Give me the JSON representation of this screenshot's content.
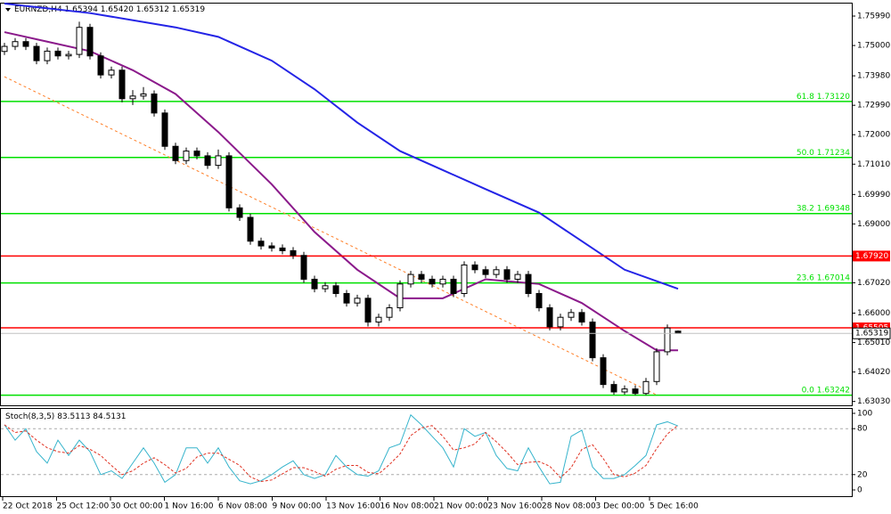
{
  "chart_data": {
    "type": "candlestick",
    "title": "EURNZD,H4",
    "last_labels": [
      "1.65394",
      "1.65420",
      "1.65312",
      "1.65319"
    ],
    "candles": [
      [
        1.748,
        1.7509,
        1.7468,
        1.7497
      ],
      [
        1.7497,
        1.7525,
        1.7485,
        1.7513
      ],
      [
        1.7513,
        1.7525,
        1.7485,
        1.7497
      ],
      [
        1.7497,
        1.7509,
        1.7437,
        1.7449
      ],
      [
        1.7449,
        1.7493,
        1.7437,
        1.7481
      ],
      [
        1.7481,
        1.7493,
        1.7453,
        1.7465
      ],
      [
        1.7465,
        1.7482,
        1.7453,
        1.747
      ],
      [
        1.747,
        1.758,
        1.7458,
        1.7561
      ],
      [
        1.7561,
        1.7573,
        1.7453,
        1.7465
      ],
      [
        1.7465,
        1.7477,
        1.7389,
        1.7401
      ],
      [
        1.7401,
        1.7429,
        1.7389,
        1.7417
      ],
      [
        1.7417,
        1.7429,
        1.7309,
        1.7321
      ],
      [
        1.7321,
        1.735,
        1.73,
        1.733
      ],
      [
        1.733,
        1.736,
        1.7318,
        1.7337
      ],
      [
        1.7337,
        1.7349,
        1.7261,
        1.7273
      ],
      [
        1.7273,
        1.7285,
        1.7149,
        1.7161
      ],
      [
        1.7161,
        1.7173,
        1.7101,
        1.7113
      ],
      [
        1.7113,
        1.7157,
        1.7101,
        1.7145
      ],
      [
        1.7145,
        1.7157,
        1.7117,
        1.7129
      ],
      [
        1.7129,
        1.7141,
        1.7085,
        1.7097
      ],
      [
        1.7097,
        1.715,
        1.7085,
        1.7129
      ],
      [
        1.7129,
        1.7141,
        1.6942,
        1.6954
      ],
      [
        1.6954,
        1.6966,
        1.691,
        1.6922
      ],
      [
        1.6922,
        1.6934,
        1.683,
        1.6842
      ],
      [
        1.6842,
        1.6854,
        1.6814,
        1.6826
      ],
      [
        1.6826,
        1.6838,
        1.6807,
        1.6819
      ],
      [
        1.6819,
        1.6831,
        1.6798,
        1.681
      ],
      [
        1.681,
        1.6822,
        1.6782,
        1.6794
      ],
      [
        1.6794,
        1.6806,
        1.6702,
        1.6714
      ],
      [
        1.6714,
        1.6726,
        1.667,
        1.6682
      ],
      [
        1.6682,
        1.6704,
        1.667,
        1.6692
      ],
      [
        1.6692,
        1.6704,
        1.6654,
        1.6666
      ],
      [
        1.6666,
        1.6678,
        1.6622,
        1.6634
      ],
      [
        1.6634,
        1.6662,
        1.6622,
        1.665
      ],
      [
        1.665,
        1.6662,
        1.6555,
        1.657
      ],
      [
        1.657,
        1.6598,
        1.6555,
        1.6586
      ],
      [
        1.6586,
        1.663,
        1.6574,
        1.6618
      ],
      [
        1.6618,
        1.671,
        1.6606,
        1.6698
      ],
      [
        1.6698,
        1.6742,
        1.6686,
        1.673
      ],
      [
        1.673,
        1.6742,
        1.6702,
        1.6714
      ],
      [
        1.6714,
        1.6726,
        1.6686,
        1.6698
      ],
      [
        1.6698,
        1.6726,
        1.6686,
        1.6714
      ],
      [
        1.6714,
        1.6726,
        1.6654,
        1.6666
      ],
      [
        1.6666,
        1.6774,
        1.6654,
        1.6762
      ],
      [
        1.6762,
        1.6774,
        1.6734,
        1.6746
      ],
      [
        1.6746,
        1.6758,
        1.6718,
        1.673
      ],
      [
        1.673,
        1.6758,
        1.6718,
        1.6746
      ],
      [
        1.6746,
        1.6758,
        1.6702,
        1.6714
      ],
      [
        1.6714,
        1.6742,
        1.6702,
        1.673
      ],
      [
        1.673,
        1.6742,
        1.6654,
        1.6666
      ],
      [
        1.6666,
        1.6678,
        1.6606,
        1.6618
      ],
      [
        1.6618,
        1.663,
        1.6542,
        1.6554
      ],
      [
        1.6554,
        1.6598,
        1.6542,
        1.6586
      ],
      [
        1.6586,
        1.6614,
        1.6574,
        1.6602
      ],
      [
        1.6602,
        1.6614,
        1.6558,
        1.657
      ],
      [
        1.657,
        1.6582,
        1.6438,
        1.645
      ],
      [
        1.645,
        1.6462,
        1.6348,
        1.636
      ],
      [
        1.636,
        1.6372,
        1.6326,
        1.6335
      ],
      [
        1.6335,
        1.6357,
        1.6326,
        1.6345
      ],
      [
        1.6345,
        1.6357,
        1.6324,
        1.633
      ],
      [
        1.633,
        1.6382,
        1.6324,
        1.637
      ],
      [
        1.637,
        1.6482,
        1.6358,
        1.647
      ],
      [
        1.647,
        1.6562,
        1.6458,
        1.655
      ],
      [
        1.65394,
        1.6542,
        1.65312,
        1.65319
      ]
    ],
    "ylim": [
      1.629,
      1.7641
    ],
    "yticks": [
      {
        "value": 1.7599,
        "label": "1.75990"
      },
      {
        "value": 1.75,
        "label": "1.75000"
      },
      {
        "value": 1.7398,
        "label": "1.73980"
      },
      {
        "value": 1.7299,
        "label": "1.72990"
      },
      {
        "value": 1.72,
        "label": "1.72000"
      },
      {
        "value": 1.7101,
        "label": "1.71010"
      },
      {
        "value": 1.6999,
        "label": "1.69990"
      },
      {
        "value": 1.69,
        "label": "1.69000"
      },
      {
        "value": 1.6702,
        "label": "1.67020"
      },
      {
        "value": 1.66,
        "label": "1.66000"
      },
      {
        "value": 1.6501,
        "label": "1.65010"
      },
      {
        "value": 1.6402,
        "label": "1.64020"
      },
      {
        "value": 1.6303,
        "label": "1.63030"
      }
    ],
    "x_labels": [
      "22 Oct 2018",
      "25 Oct 12:00",
      "30 Oct 00:00",
      "1 Nov 16:00",
      "6 Nov 08:00",
      "9 Nov 00:00",
      "13 Nov 16:00",
      "16 Nov 08:00",
      "21 Nov 00:00",
      "23 Nov 16:00",
      "28 Nov 08:00",
      "3 Dec 00:00",
      "5 Dec 16:00"
    ],
    "moving_averages": [
      {
        "color": "#2424e6",
        "x": [
          0,
          8,
          16,
          20,
          25,
          29,
          33,
          37,
          41,
          45,
          50,
          54,
          58,
          63
        ],
        "values": [
          1.7641,
          1.7609,
          1.7561,
          1.7529,
          1.7449,
          1.7353,
          1.7241,
          1.7145,
          1.7081,
          1.7017,
          1.6938,
          1.6842,
          1.6746,
          1.6682
        ]
      },
      {
        "color": "#8b1a8b",
        "x": [
          0,
          4,
          8,
          12,
          16,
          20,
          25,
          29,
          33,
          37,
          41,
          45,
          50,
          54,
          58,
          61,
          63
        ],
        "values": [
          1.7545,
          1.7513,
          1.7481,
          1.7417,
          1.7337,
          1.7209,
          1.7033,
          1.6873,
          1.6746,
          1.665,
          1.665,
          1.6714,
          1.6698,
          1.6634,
          1.654,
          1.6475,
          1.6475
        ]
      }
    ],
    "trendline": {
      "color": "#ff7f27",
      "x": [
        0,
        61
      ],
      "values": [
        1.7395,
        1.6325
      ]
    },
    "fib_color": "#00e000",
    "fib_levels": [
      {
        "level": "61.8",
        "value": 1.7312,
        "label": "1.73120"
      },
      {
        "level": "50.0",
        "value": 1.71234,
        "label": "1.71234"
      },
      {
        "level": "38.2",
        "value": 1.69348,
        "label": "1.69348"
      },
      {
        "level": "23.6",
        "value": 1.67014,
        "label": "1.67014"
      },
      {
        "level": "0.0",
        "value": 1.63242,
        "label": "1.63242"
      }
    ],
    "line_color": "#ff0000",
    "price_lines": [
      {
        "value": 1.6792,
        "label": "1.67920"
      },
      {
        "value": 1.65505,
        "label": "1.65505"
      }
    ],
    "indicator": {
      "type": "line",
      "name": "Stoch(8,3,5)",
      "ylim": [
        0,
        100
      ],
      "yticks": [
        0,
        20,
        80,
        100
      ],
      "levels": [
        20,
        80
      ],
      "series": [
        {
          "color": "#36b4cc",
          "values": [
            85,
            65,
            80,
            50,
            35,
            65,
            45,
            65,
            50,
            20,
            25,
            15,
            35,
            55,
            35,
            10,
            20,
            55,
            55,
            35,
            55,
            30,
            12,
            8,
            12,
            20,
            30,
            38,
            20,
            15,
            20,
            45,
            30,
            20,
            18,
            25,
            55,
            60,
            98,
            85,
            70,
            55,
            30,
            80,
            70,
            75,
            45,
            28,
            25,
            55,
            30,
            8,
            10,
            70,
            78,
            30,
            15,
            15,
            20,
            32,
            45,
            85,
            89,
            83.5113
          ]
        },
        {
          "color": "#e03020",
          "dashed": true,
          "values": [
            85,
            75,
            77,
            65,
            55,
            50,
            48,
            58,
            53,
            45,
            32,
            20,
            25,
            35,
            42,
            33,
            22,
            28,
            43,
            48,
            48,
            40,
            32,
            17,
            11,
            13,
            21,
            29,
            29,
            24,
            18,
            27,
            32,
            32,
            23,
            21,
            33,
            47,
            71,
            81,
            84,
            70,
            52,
            55,
            60,
            75,
            63,
            49,
            33,
            36,
            37,
            31,
            16,
            29,
            53,
            59,
            41,
            20,
            17,
            22,
            32,
            54,
            73,
            84.5131
          ]
        }
      ]
    }
  }
}
